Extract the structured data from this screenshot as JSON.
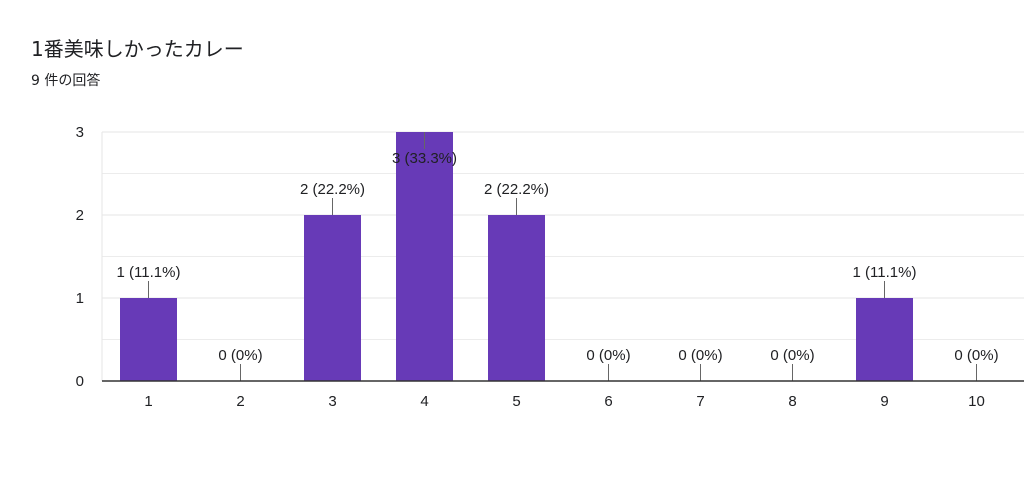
{
  "header": {
    "title": "1番美味しかったカレー",
    "response_count": "9 件の回答"
  },
  "chart_data": {
    "type": "bar",
    "categories": [
      "1",
      "2",
      "3",
      "4",
      "5",
      "6",
      "7",
      "8",
      "9",
      "10"
    ],
    "values": [
      1,
      0,
      2,
      3,
      2,
      0,
      0,
      0,
      1,
      0
    ],
    "data_labels": [
      "1 (11.1%)",
      "0 (0%)",
      "2 (22.2%)",
      "3 (33.3%)",
      "2 (22.2%)",
      "0 (0%)",
      "0 (0%)",
      "0 (0%)",
      "1 (11.1%)",
      "0 (0%)"
    ],
    "ylim": [
      0,
      3
    ],
    "yticks": [
      0,
      1,
      2,
      3
    ],
    "grid": true,
    "bar_color": "#673ab7",
    "gridline_color": "#e6e6e6",
    "axis_color": "#333333"
  }
}
